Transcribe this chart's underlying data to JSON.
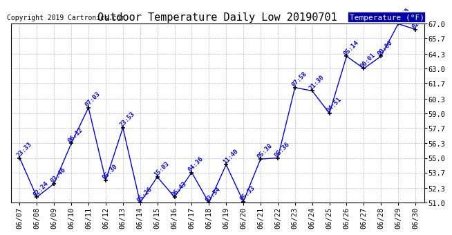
{
  "title": "Outdoor Temperature Daily Low 20190701",
  "copyright": "Copyright 2019 Cartronics.com",
  "legend_label": "Temperature (°F)",
  "dates": [
    "06/07",
    "06/08",
    "06/09",
    "06/10",
    "06/11",
    "06/12",
    "06/13",
    "06/14",
    "06/15",
    "06/16",
    "06/17",
    "06/18",
    "06/19",
    "06/20",
    "06/21",
    "06/22",
    "06/23",
    "06/24",
    "06/25",
    "06/26",
    "06/27",
    "06/28",
    "06/29",
    "06/30"
  ],
  "values": [
    55.0,
    51.5,
    52.7,
    56.3,
    59.5,
    53.0,
    57.7,
    51.0,
    53.3,
    51.5,
    53.7,
    51.0,
    54.4,
    51.1,
    54.9,
    55.0,
    61.3,
    61.0,
    59.0,
    64.1,
    63.0,
    64.1,
    67.0,
    66.5
  ],
  "time_labels": [
    "23:33",
    "02:24",
    "03:46",
    "06:12",
    "07:03",
    "05:30",
    "23:53",
    "05:26",
    "15:03",
    "06:43",
    "04:36",
    "03:54",
    "11:40",
    "05:33",
    "05:38",
    "05:36",
    "07:58",
    "21:30",
    "04:51",
    "05:14",
    "06:01",
    "00:00",
    "05:50",
    "02:29"
  ],
  "ylim": [
    51.0,
    67.0
  ],
  "ytick_values": [
    51.0,
    52.3,
    53.7,
    55.0,
    56.3,
    57.7,
    59.0,
    60.3,
    61.7,
    63.0,
    64.3,
    65.7,
    67.0
  ],
  "ytick_labels": [
    "51.0",
    "52.3",
    "53.7",
    "55.0",
    "56.3",
    "57.7",
    "59.0",
    "60.3",
    "61.7",
    "63.0",
    "64.3",
    "65.7",
    "67.0"
  ],
  "line_color": "#0000cc",
  "marker_color": "#000000",
  "label_color": "#0000cc",
  "background_color": "#ffffff",
  "grid_color": "#aaaaaa",
  "title_fontsize": 11,
  "copyright_fontsize": 7,
  "label_fontsize": 6.5,
  "tick_fontsize": 7.5,
  "legend_bg": "#0000aa",
  "legend_fg": "#ffffff",
  "legend_fontsize": 8
}
